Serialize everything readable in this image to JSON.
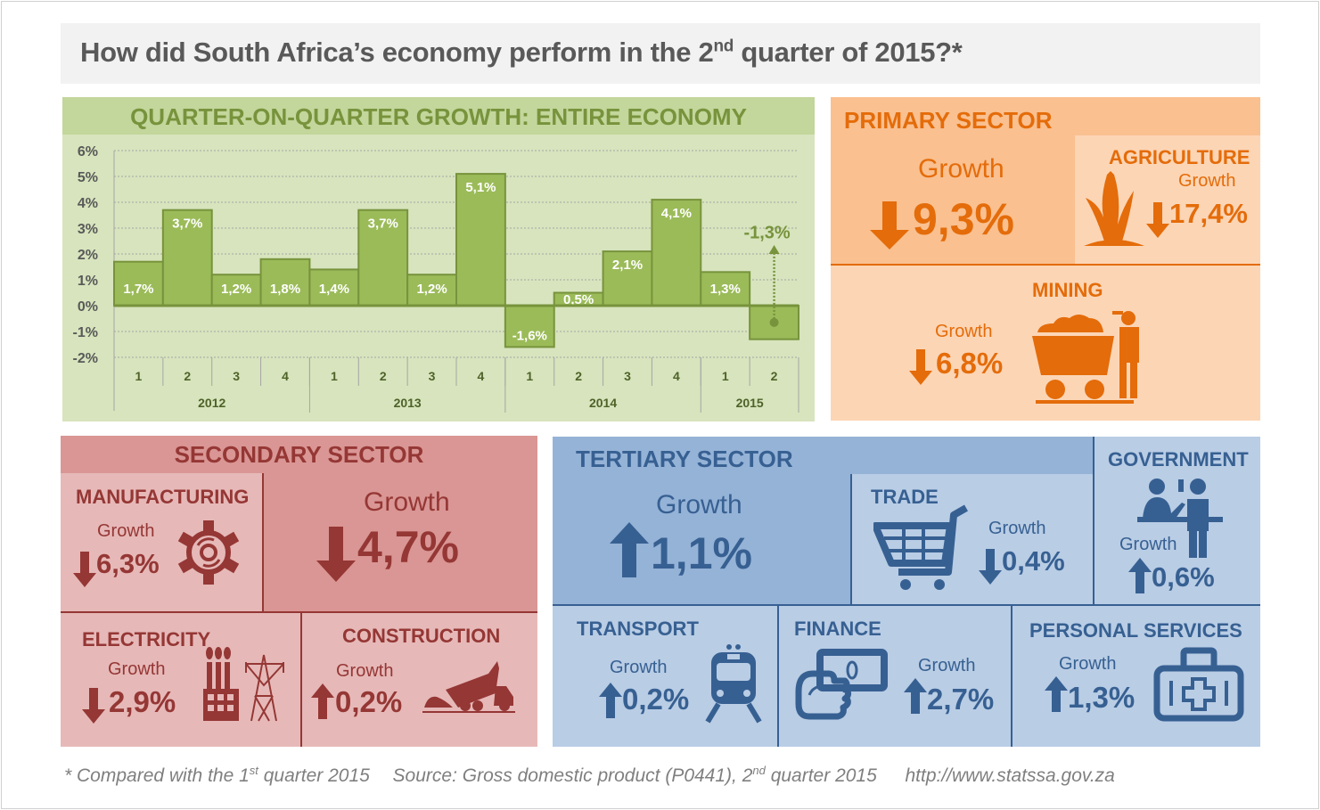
{
  "title": {
    "prefix": "How did South Africa’s economy perform in the 2",
    "sup": "nd",
    "suffix": " quarter of 2015?*"
  },
  "chart_data": {
    "type": "bar",
    "title": "QUARTER-ON-QUARTER GROWTH: ENTIRE ECONOMY",
    "xlabel": "",
    "ylabel": "",
    "ylim": [
      -2,
      6
    ],
    "yticks": [
      "6%",
      "5%",
      "4%",
      "3%",
      "2%",
      "1%",
      "0%",
      "-1%",
      "-2%"
    ],
    "ytick_values": [
      6,
      5,
      4,
      3,
      2,
      1,
      0,
      -1,
      -2
    ],
    "grid": true,
    "categories": [
      "1",
      "2",
      "3",
      "4",
      "1",
      "2",
      "3",
      "4",
      "1",
      "2",
      "3",
      "4",
      "1",
      "2"
    ],
    "groups": [
      {
        "label": "2012",
        "count": 4
      },
      {
        "label": "2013",
        "count": 4
      },
      {
        "label": "2014",
        "count": 4
      },
      {
        "label": "2015",
        "count": 2
      }
    ],
    "values": [
      1.7,
      3.7,
      1.2,
      1.8,
      1.4,
      3.7,
      1.2,
      5.1,
      -1.6,
      0.5,
      2.1,
      4.1,
      1.3,
      -1.3
    ],
    "labels": [
      "1,7%",
      "3,7%",
      "1,2%",
      "1,8%",
      "1,4%",
      "3,7%",
      "1,2%",
      "5,1%",
      "-1,6%",
      "0,5%",
      "2,1%",
      "4,1%",
      "1,3%",
      ""
    ],
    "annotation": {
      "text": "-1,3%",
      "index": 13
    },
    "colors": {
      "bar": "#9bbb59",
      "bar_border": "#77933c",
      "text": "#77933c"
    }
  },
  "primary": {
    "title": "PRIMARY SECTOR",
    "growth_label": "Growth",
    "value": "9,3%",
    "direction": "down",
    "color": "#e46c0a",
    "agriculture": {
      "title": "AGRICULTURE",
      "growth_label": "Growth",
      "value": "17,4%",
      "direction": "down",
      "icon": "corn-icon"
    },
    "mining": {
      "title": "MINING",
      "growth_label": "Growth",
      "value": "6,8%",
      "direction": "down",
      "icon": "mine-cart-icon"
    }
  },
  "secondary": {
    "title": "SECONDARY SECTOR",
    "growth_label": "Growth",
    "value": "4,7%",
    "direction": "down",
    "color": "#953735",
    "manufacturing": {
      "title": "MANUFACTURING",
      "growth_label": "Growth",
      "value": "6,3%",
      "direction": "down",
      "icon": "gear-icon"
    },
    "electricity": {
      "title": "ELECTRICITY",
      "growth_label": "Growth",
      "value": "2,9%",
      "direction": "down",
      "icon": "power-plant-icon"
    },
    "construction": {
      "title": "CONSTRUCTION",
      "growth_label": "Growth",
      "value": "0,2%",
      "direction": "up",
      "icon": "dump-truck-icon"
    }
  },
  "tertiary": {
    "title": "TERTIARY SECTOR",
    "growth_label": "Growth",
    "value": "1,1%",
    "direction": "up",
    "color": "#376092",
    "trade": {
      "title": "TRADE",
      "growth_label": "Growth",
      "value": "0,4%",
      "direction": "down",
      "icon": "shopping-cart-icon"
    },
    "government": {
      "title": "GOVERNMENT",
      "growth_label": "Growth",
      "value": "0,6%",
      "direction": "up",
      "icon": "service-counter-icon"
    },
    "transport": {
      "title": "TRANSPORT",
      "growth_label": "Growth",
      "value": "0,2%",
      "direction": "up",
      "icon": "train-icon"
    },
    "finance": {
      "title": "FINANCE",
      "growth_label": "Growth",
      "value": "2,7%",
      "direction": "up",
      "icon": "money-hand-icon"
    },
    "personal_services": {
      "title": "PERSONAL SERVICES",
      "growth_label": "Growth",
      "value": "1,3%",
      "direction": "up",
      "icon": "medical-kit-icon"
    }
  },
  "footer": {
    "note_prefix": "* Compared with the 1",
    "note_sup": "st",
    "note_suffix": " quarter 2015",
    "source_prefix": "Source: Gross domestic product (P0441), 2",
    "source_sup": "nd",
    "source_suffix": " quarter 2015",
    "url": "http://www.statssa.gov.za"
  }
}
